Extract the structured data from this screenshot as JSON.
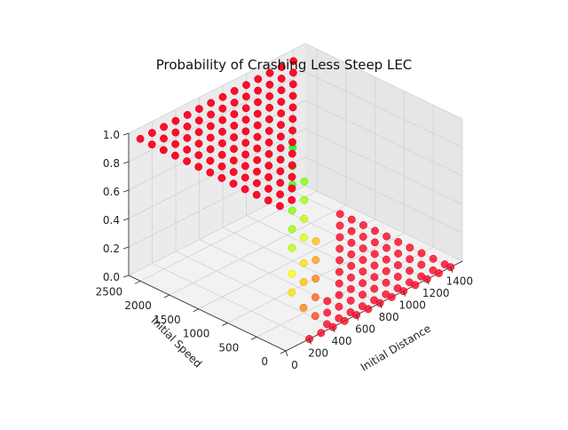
{
  "chart_data": {
    "type": "scatter",
    "projection": "3d",
    "title": "Probability of Crashing Less Steep LEC",
    "xlabel": "Initial Distance",
    "ylabel": "Initial Speed",
    "zlabel": "",
    "xlim": [
      0,
      1500
    ],
    "ylim": [
      0,
      2700
    ],
    "zlim": [
      0,
      1.0
    ],
    "x_ticks": [
      "0",
      "200",
      "400",
      "600",
      "800",
      "1000",
      "1200",
      "1400"
    ],
    "y_ticks": [
      "0",
      "500",
      "1000",
      "1500",
      "2000",
      "2500"
    ],
    "z_ticks": [
      "0.0",
      "0.2",
      "0.4",
      "0.6",
      "0.8",
      "1.0"
    ],
    "grid": true,
    "colormap": [
      "#ff0020",
      "#ffff00",
      "#00ff00"
    ],
    "points": [
      [
        0,
        100,
        1.0
      ],
      [
        0,
        300,
        1.0
      ],
      [
        0,
        500,
        1.0
      ],
      [
        0,
        700,
        1.0
      ],
      [
        0,
        900,
        1.0
      ],
      [
        0,
        1100,
        1.0
      ],
      [
        0,
        1300,
        1.0
      ],
      [
        0,
        1500,
        1.0
      ],
      [
        0,
        1700,
        1.0
      ],
      [
        0,
        1900,
        1.0
      ],
      [
        0,
        2100,
        1.0
      ],
      [
        0,
        2300,
        1.0
      ],
      [
        0,
        2500,
        1.0
      ],
      [
        100,
        100,
        1.0
      ],
      [
        100,
        300,
        1.0
      ],
      [
        100,
        500,
        1.0
      ],
      [
        100,
        700,
        1.0
      ],
      [
        100,
        900,
        1.0
      ],
      [
        100,
        1100,
        1.0
      ],
      [
        100,
        1300,
        1.0
      ],
      [
        100,
        1500,
        1.0
      ],
      [
        100,
        1700,
        1.0
      ],
      [
        100,
        1900,
        1.0
      ],
      [
        100,
        2100,
        1.0
      ],
      [
        100,
        2300,
        1.0
      ],
      [
        100,
        2500,
        1.0
      ],
      [
        200,
        300,
        1.0
      ],
      [
        200,
        500,
        1.0
      ],
      [
        200,
        700,
        1.0
      ],
      [
        200,
        900,
        1.0
      ],
      [
        200,
        1100,
        1.0
      ],
      [
        200,
        1300,
        1.0
      ],
      [
        200,
        1500,
        1.0
      ],
      [
        200,
        1700,
        1.0
      ],
      [
        200,
        1900,
        1.0
      ],
      [
        200,
        2100,
        1.0
      ],
      [
        200,
        2300,
        1.0
      ],
      [
        200,
        2500,
        1.0
      ],
      [
        300,
        500,
        1.0
      ],
      [
        300,
        700,
        1.0
      ],
      [
        300,
        900,
        1.0
      ],
      [
        300,
        1100,
        1.0
      ],
      [
        300,
        1300,
        1.0
      ],
      [
        300,
        1500,
        1.0
      ],
      [
        300,
        1700,
        1.0
      ],
      [
        300,
        1900,
        1.0
      ],
      [
        300,
        2100,
        1.0
      ],
      [
        300,
        2300,
        1.0
      ],
      [
        300,
        2500,
        1.0
      ],
      [
        400,
        700,
        1.0
      ],
      [
        400,
        900,
        1.0
      ],
      [
        400,
        1100,
        1.0
      ],
      [
        400,
        1300,
        1.0
      ],
      [
        400,
        1500,
        1.0
      ],
      [
        400,
        1700,
        1.0
      ],
      [
        400,
        1900,
        1.0
      ],
      [
        400,
        2100,
        1.0
      ],
      [
        400,
        2300,
        1.0
      ],
      [
        400,
        2500,
        1.0
      ],
      [
        500,
        900,
        1.0
      ],
      [
        500,
        1100,
        1.0
      ],
      [
        500,
        1300,
        1.0
      ],
      [
        500,
        1500,
        1.0
      ],
      [
        500,
        1700,
        1.0
      ],
      [
        500,
        1900,
        1.0
      ],
      [
        500,
        2100,
        1.0
      ],
      [
        500,
        2300,
        1.0
      ],
      [
        500,
        2500,
        1.0
      ],
      [
        600,
        1100,
        1.0
      ],
      [
        600,
        1300,
        1.0
      ],
      [
        600,
        1500,
        1.0
      ],
      [
        600,
        1700,
        1.0
      ],
      [
        600,
        1900,
        1.0
      ],
      [
        600,
        2100,
        1.0
      ],
      [
        600,
        2300,
        1.0
      ],
      [
        600,
        2500,
        1.0
      ],
      [
        700,
        1300,
        1.0
      ],
      [
        700,
        1500,
        1.0
      ],
      [
        700,
        1700,
        1.0
      ],
      [
        700,
        1900,
        1.0
      ],
      [
        700,
        2100,
        1.0
      ],
      [
        700,
        2300,
        1.0
      ],
      [
        700,
        2500,
        1.0
      ],
      [
        800,
        1500,
        1.0
      ],
      [
        800,
        1700,
        1.0
      ],
      [
        800,
        1900,
        1.0
      ],
      [
        800,
        2100,
        1.0
      ],
      [
        800,
        2300,
        1.0
      ],
      [
        800,
        2500,
        1.0
      ],
      [
        900,
        1700,
        1.0
      ],
      [
        900,
        1900,
        1.0
      ],
      [
        900,
        2100,
        1.0
      ],
      [
        900,
        2300,
        1.0
      ],
      [
        900,
        2500,
        1.0
      ],
      [
        1000,
        1900,
        1.0
      ],
      [
        1000,
        2100,
        1.0
      ],
      [
        1000,
        2300,
        1.0
      ],
      [
        1000,
        2500,
        1.0
      ],
      [
        1100,
        2100,
        1.0
      ],
      [
        1100,
        2300,
        1.0
      ],
      [
        1100,
        2500,
        1.0
      ],
      [
        1200,
        2300,
        1.0
      ],
      [
        1200,
        2500,
        1.0
      ],
      [
        1300,
        2500,
        1.0
      ],
      [
        100,
        100,
        0.35
      ],
      [
        200,
        300,
        0.4
      ],
      [
        300,
        500,
        0.5
      ],
      [
        400,
        700,
        0.55
      ],
      [
        500,
        900,
        0.6
      ],
      [
        600,
        1100,
        0.7
      ],
      [
        700,
        1300,
        0.75
      ],
      [
        800,
        1500,
        0.8
      ],
      [
        200,
        100,
        0.2
      ],
      [
        300,
        300,
        0.3
      ],
      [
        400,
        500,
        0.35
      ],
      [
        500,
        700,
        0.45
      ],
      [
        600,
        900,
        0.5
      ],
      [
        700,
        1100,
        0.55
      ],
      [
        800,
        1300,
        0.6
      ],
      [
        300,
        100,
        0.1
      ],
      [
        400,
        300,
        0.15
      ],
      [
        500,
        500,
        0.2
      ],
      [
        600,
        700,
        0.25
      ],
      [
        700,
        900,
        0.3
      ],
      [
        200,
        0,
        0.0
      ],
      [
        300,
        0,
        0.0
      ],
      [
        400,
        0,
        0.0
      ],
      [
        500,
        0,
        0.0
      ],
      [
        600,
        0,
        0.0
      ],
      [
        700,
        0,
        0.0
      ],
      [
        800,
        0,
        0.0
      ],
      [
        900,
        0,
        0.0
      ],
      [
        1000,
        0,
        0.0
      ],
      [
        1100,
        0,
        0.0
      ],
      [
        1200,
        0,
        0.0
      ],
      [
        1300,
        0,
        0.0
      ],
      [
        1400,
        0,
        0.0
      ],
      [
        400,
        100,
        0.0
      ],
      [
        500,
        100,
        0.0
      ],
      [
        600,
        100,
        0.0
      ],
      [
        700,
        100,
        0.0
      ],
      [
        800,
        100,
        0.0
      ],
      [
        900,
        100,
        0.0
      ],
      [
        1000,
        100,
        0.0
      ],
      [
        1100,
        100,
        0.0
      ],
      [
        1200,
        100,
        0.0
      ],
      [
        1300,
        100,
        0.0
      ],
      [
        1400,
        100,
        0.0
      ],
      [
        500,
        300,
        0.0
      ],
      [
        600,
        300,
        0.0
      ],
      [
        700,
        300,
        0.0
      ],
      [
        800,
        300,
        0.0
      ],
      [
        900,
        300,
        0.0
      ],
      [
        1000,
        300,
        0.0
      ],
      [
        1100,
        300,
        0.0
      ],
      [
        1200,
        300,
        0.0
      ],
      [
        1300,
        300,
        0.0
      ],
      [
        1400,
        300,
        0.0
      ],
      [
        600,
        500,
        0.0
      ],
      [
        700,
        500,
        0.0
      ],
      [
        800,
        500,
        0.0
      ],
      [
        900,
        500,
        0.0
      ],
      [
        1000,
        500,
        0.0
      ],
      [
        1100,
        500,
        0.0
      ],
      [
        1200,
        500,
        0.0
      ],
      [
        1300,
        500,
        0.0
      ],
      [
        1400,
        500,
        0.0
      ],
      [
        800,
        700,
        0.0
      ],
      [
        900,
        700,
        0.0
      ],
      [
        1000,
        700,
        0.0
      ],
      [
        1100,
        700,
        0.0
      ],
      [
        1200,
        700,
        0.0
      ],
      [
        1300,
        700,
        0.0
      ],
      [
        1400,
        700,
        0.0
      ],
      [
        900,
        900,
        0.0
      ],
      [
        1000,
        900,
        0.0
      ],
      [
        1100,
        900,
        0.0
      ],
      [
        1200,
        900,
        0.0
      ],
      [
        1300,
        900,
        0.0
      ],
      [
        1400,
        900,
        0.0
      ],
      [
        1000,
        1100,
        0.0
      ],
      [
        1100,
        1100,
        0.0
      ],
      [
        1200,
        1100,
        0.0
      ],
      [
        1300,
        1100,
        0.0
      ],
      [
        1400,
        1100,
        0.0
      ],
      [
        1100,
        1300,
        0.0
      ],
      [
        1200,
        1300,
        0.0
      ],
      [
        1300,
        1300,
        0.0
      ],
      [
        1400,
        1300,
        0.0
      ],
      [
        1200,
        1500,
        0.0
      ],
      [
        1300,
        1500,
        0.0
      ],
      [
        1400,
        1500,
        0.0
      ],
      [
        1300,
        1700,
        0.0
      ],
      [
        1400,
        1700,
        0.0
      ],
      [
        1400,
        1900,
        0.0
      ]
    ]
  }
}
